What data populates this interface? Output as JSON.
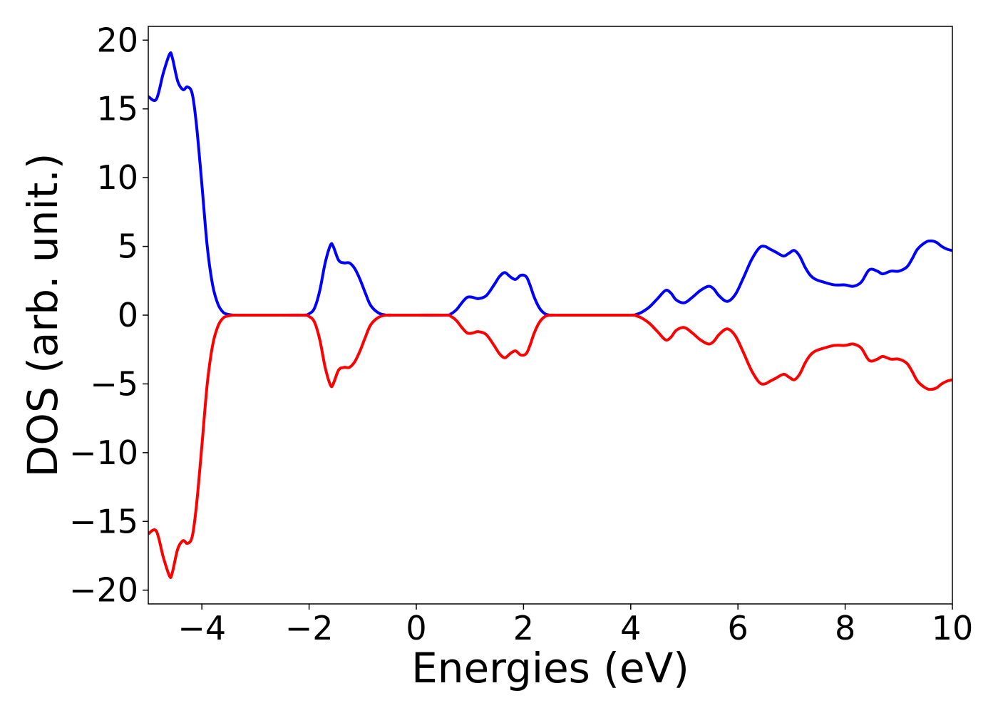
{
  "chart_data": {
    "type": "line",
    "title": "",
    "xlabel": "Energies (eV)",
    "ylabel": "DOS (arb. unit.)",
    "xlim": [
      -5,
      10
    ],
    "ylim": [
      -21,
      21
    ],
    "xticks": [
      -4,
      -2,
      0,
      2,
      4,
      6,
      8,
      10
    ],
    "xtick_labels": [
      "−4",
      "−2",
      "0",
      "2",
      "4",
      "6",
      "8",
      "10"
    ],
    "yticks": [
      20,
      15,
      10,
      5,
      0,
      -5,
      -10,
      -15,
      -20
    ],
    "ytick_labels": [
      "20",
      "15",
      "10",
      "5",
      "0",
      "−5",
      "−10",
      "−15",
      "−20"
    ],
    "grid": false,
    "legend": "none",
    "series": [
      {
        "color": "#0000ff",
        "x": [
          -5.0,
          -4.85,
          -4.72,
          -4.6,
          -4.55,
          -4.45,
          -4.35,
          -4.27,
          -4.18,
          -4.1,
          -4.0,
          -3.9,
          -3.8,
          -3.7,
          -3.6,
          -3.5,
          -3.4,
          -3.3,
          -2.5,
          -2.1,
          -2.0,
          -1.9,
          -1.8,
          -1.7,
          -1.6,
          -1.55,
          -1.45,
          -1.35,
          -1.25,
          -1.15,
          -1.05,
          -0.95,
          -0.85,
          -0.7,
          -0.55,
          -0.4,
          0.0,
          0.55,
          0.65,
          0.75,
          0.85,
          0.95,
          1.05,
          1.15,
          1.3,
          1.45,
          1.55,
          1.65,
          1.75,
          1.85,
          1.95,
          2.05,
          2.12,
          2.2,
          2.3,
          2.4,
          2.5,
          2.6,
          3.0,
          4.0,
          4.1,
          4.2,
          4.35,
          4.5,
          4.65,
          4.75,
          4.85,
          5.0,
          5.15,
          5.3,
          5.45,
          5.55,
          5.65,
          5.8,
          5.95,
          6.1,
          6.25,
          6.4,
          6.5,
          6.6,
          6.7,
          6.85,
          6.95,
          7.05,
          7.15,
          7.25,
          7.35,
          7.45,
          7.6,
          7.8,
          8.0,
          8.15,
          8.3,
          8.45,
          8.6,
          8.7,
          8.85,
          9.0,
          9.15,
          9.25,
          9.35,
          9.5,
          9.6,
          9.7,
          9.8,
          9.9,
          10.0
        ],
        "y": [
          15.9,
          15.7,
          17.6,
          19.0,
          18.7,
          17.0,
          16.4,
          16.6,
          16.1,
          13.8,
          9.5,
          5.0,
          2.2,
          0.8,
          0.2,
          0.05,
          0.0,
          0.0,
          0.0,
          0.0,
          0.1,
          0.5,
          1.8,
          3.8,
          5.1,
          5.0,
          4.0,
          3.8,
          3.8,
          3.4,
          2.6,
          1.6,
          0.7,
          0.15,
          0.0,
          0.0,
          0.0,
          0.0,
          0.1,
          0.4,
          0.9,
          1.3,
          1.3,
          1.2,
          1.4,
          2.2,
          2.8,
          3.1,
          2.8,
          2.6,
          2.9,
          2.8,
          2.2,
          1.3,
          0.5,
          0.1,
          0.0,
          0.0,
          0.0,
          0.0,
          0.05,
          0.2,
          0.6,
          1.2,
          1.8,
          1.6,
          1.1,
          0.9,
          1.3,
          1.8,
          2.1,
          1.9,
          1.4,
          1.0,
          1.5,
          2.7,
          4.0,
          4.9,
          5.0,
          4.8,
          4.6,
          4.3,
          4.5,
          4.7,
          4.3,
          3.5,
          2.9,
          2.6,
          2.4,
          2.2,
          2.2,
          2.1,
          2.4,
          3.3,
          3.2,
          3.0,
          3.2,
          3.2,
          3.5,
          4.1,
          4.8,
          5.3,
          5.4,
          5.3,
          5.0,
          4.8,
          4.7
        ]
      },
      {
        "color": "#ff0000",
        "x": [
          -5.0,
          -4.85,
          -4.72,
          -4.6,
          -4.55,
          -4.45,
          -4.35,
          -4.27,
          -4.18,
          -4.1,
          -4.0,
          -3.9,
          -3.8,
          -3.7,
          -3.6,
          -3.5,
          -3.4,
          -3.3,
          -2.5,
          -2.1,
          -2.0,
          -1.9,
          -1.8,
          -1.7,
          -1.6,
          -1.55,
          -1.45,
          -1.35,
          -1.25,
          -1.15,
          -1.05,
          -0.95,
          -0.85,
          -0.7,
          -0.55,
          -0.4,
          0.0,
          0.55,
          0.65,
          0.75,
          0.85,
          0.95,
          1.05,
          1.15,
          1.3,
          1.45,
          1.55,
          1.65,
          1.75,
          1.85,
          1.95,
          2.05,
          2.12,
          2.2,
          2.3,
          2.4,
          2.5,
          2.6,
          3.0,
          4.0,
          4.1,
          4.2,
          4.35,
          4.5,
          4.65,
          4.75,
          4.85,
          5.0,
          5.15,
          5.3,
          5.45,
          5.55,
          5.65,
          5.8,
          5.95,
          6.1,
          6.25,
          6.4,
          6.5,
          6.6,
          6.7,
          6.85,
          6.95,
          7.05,
          7.15,
          7.25,
          7.35,
          7.45,
          7.6,
          7.8,
          8.0,
          8.15,
          8.3,
          8.45,
          8.6,
          8.7,
          8.85,
          9.0,
          9.15,
          9.25,
          9.35,
          9.5,
          9.6,
          9.7,
          9.8,
          9.9,
          10.0
        ],
        "y": [
          -15.9,
          -15.7,
          -17.6,
          -19.0,
          -18.7,
          -17.0,
          -16.4,
          -16.6,
          -16.1,
          -13.8,
          -9.5,
          -5.0,
          -2.2,
          -0.8,
          -0.2,
          -0.05,
          0.0,
          0.0,
          0.0,
          0.0,
          -0.1,
          -0.5,
          -1.8,
          -3.8,
          -5.1,
          -5.0,
          -4.0,
          -3.8,
          -3.8,
          -3.4,
          -2.6,
          -1.6,
          -0.7,
          -0.15,
          0.0,
          0.0,
          0.0,
          0.0,
          -0.1,
          -0.4,
          -0.9,
          -1.3,
          -1.3,
          -1.2,
          -1.4,
          -2.2,
          -2.8,
          -3.1,
          -2.8,
          -2.6,
          -2.9,
          -2.8,
          -2.2,
          -1.3,
          -0.5,
          -0.1,
          0.0,
          0.0,
          0.0,
          0.0,
          -0.05,
          -0.2,
          -0.6,
          -1.2,
          -1.8,
          -1.6,
          -1.1,
          -0.9,
          -1.3,
          -1.8,
          -2.1,
          -1.9,
          -1.4,
          -1.0,
          -1.5,
          -2.7,
          -4.0,
          -4.9,
          -5.0,
          -4.8,
          -4.6,
          -4.3,
          -4.5,
          -4.7,
          -4.3,
          -3.5,
          -2.9,
          -2.6,
          -2.4,
          -2.2,
          -2.2,
          -2.1,
          -2.4,
          -3.3,
          -3.2,
          -3.0,
          -3.2,
          -3.2,
          -3.5,
          -4.1,
          -4.8,
          -5.3,
          -5.4,
          -5.3,
          -5.0,
          -4.8,
          -4.7
        ]
      }
    ]
  }
}
